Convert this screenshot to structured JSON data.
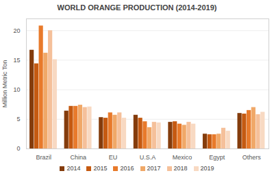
{
  "chart_data": {
    "type": "bar",
    "title": "WORLD ORANGE PRODUCTION (2014-2019)",
    "y_label": "Million Metric Ton",
    "categories": [
      "Brazil",
      "China",
      "EU",
      "U.S.A",
      "Mexico",
      "Egypt",
      "Others"
    ],
    "series": [
      {
        "name": "2014",
        "color": "#843c0c",
        "values": [
          16.7,
          6.4,
          5.3,
          5.7,
          4.5,
          2.5,
          6.0
        ]
      },
      {
        "name": "2015",
        "color": "#c55a11",
        "values": [
          14.4,
          7.2,
          5.2,
          5.2,
          4.6,
          2.4,
          5.9
        ]
      },
      {
        "name": "2016",
        "color": "#e87a2b",
        "values": [
          20.8,
          7.2,
          6.1,
          4.6,
          4.2,
          2.4,
          6.5
        ]
      },
      {
        "name": "2017",
        "color": "#f0a868",
        "values": [
          16.2,
          7.4,
          5.7,
          3.6,
          4.0,
          2.5,
          7.0
        ]
      },
      {
        "name": "2018",
        "color": "#f5c09a",
        "values": [
          20.0,
          7.0,
          6.1,
          4.5,
          4.5,
          3.5,
          5.8
        ]
      },
      {
        "name": "2019",
        "color": "#f8d9c2",
        "values": [
          15.1,
          7.1,
          5.2,
          4.4,
          4.2,
          3.0,
          6.2
        ]
      }
    ],
    "ylim": [
      0,
      22
    ],
    "yticks": [
      0,
      5,
      10,
      15,
      20
    ],
    "grid": true,
    "legend": "bottom"
  }
}
